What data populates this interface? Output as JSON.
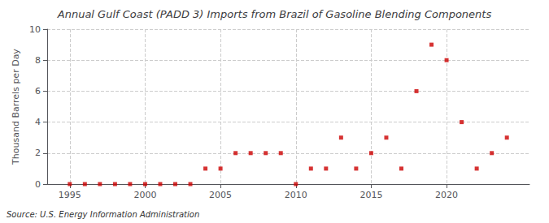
{
  "chart_data": {
    "type": "scatter",
    "title": "Annual Gulf Coast (PADD 3) Imports from Brazil of Gasoline Blending Components",
    "ylabel": "Thousand Barrels per Day",
    "annotation": "Source: U.S. Energy Information Administration",
    "x": [
      1995,
      1996,
      1997,
      1998,
      1999,
      2000,
      2001,
      2002,
      2003,
      2004,
      2005,
      2006,
      2007,
      2008,
      2009,
      2010,
      2011,
      2012,
      2013,
      2014,
      2015,
      2016,
      2017,
      2018,
      2019,
      2020,
      2021,
      2022,
      2023,
      2024
    ],
    "values": [
      0,
      0,
      0,
      0,
      0,
      0,
      0,
      0,
      0,
      1,
      1,
      2,
      2,
      2,
      2,
      0,
      1,
      1,
      3,
      1,
      2,
      3,
      1,
      6,
      9,
      8,
      4,
      1,
      2,
      3
    ],
    "color": "#cc0000",
    "marker": "square",
    "xlim": [
      1993.5,
      2025.5
    ],
    "xticks": [
      1995,
      2000,
      2005,
      2010,
      2015,
      2020
    ],
    "ylim": [
      0,
      10
    ],
    "yticks": [
      0,
      2,
      4,
      6,
      8,
      10
    ],
    "grid": true
  }
}
